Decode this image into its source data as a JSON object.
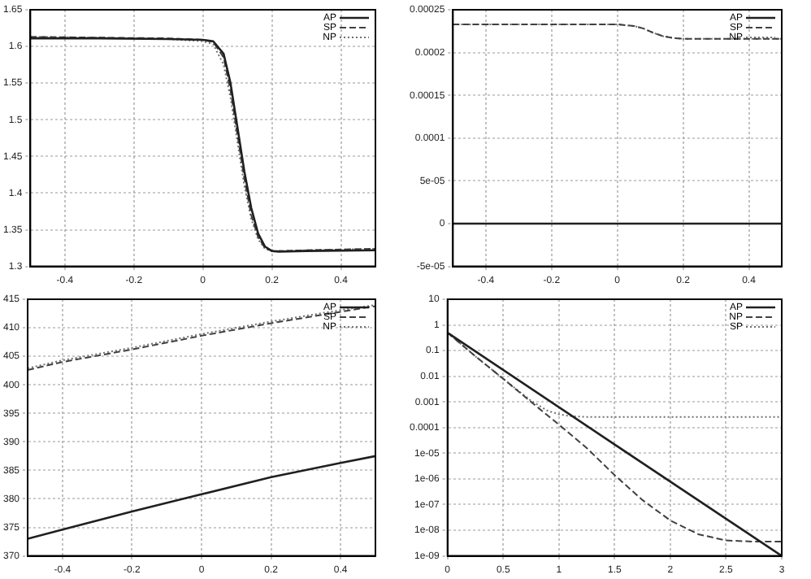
{
  "chart_data": [
    {
      "type": "line",
      "xlim": [
        -0.5,
        0.5
      ],
      "xticks": [
        -0.4,
        -0.2,
        0,
        0.2,
        0.4
      ],
      "ylim": [
        1.3,
        1.65
      ],
      "yticks": [
        1.3,
        1.35,
        1.4,
        1.45,
        1.5,
        1.55,
        1.6,
        1.65
      ],
      "grid": true,
      "legend": "top right",
      "marker": "none",
      "x": [
        -0.5,
        -0.3,
        -0.1,
        0,
        0.03,
        0.06,
        0.08,
        0.1,
        0.12,
        0.14,
        0.16,
        0.18,
        0.2,
        0.22,
        0.3,
        0.5
      ],
      "series": [
        {
          "name": "AP",
          "color": "#202020",
          "line_style": "solid",
          "values": [
            1.611,
            1.611,
            1.61,
            1.609,
            1.607,
            1.59,
            1.55,
            1.49,
            1.43,
            1.38,
            1.345,
            1.327,
            1.321,
            1.32,
            1.321,
            1.322
          ]
        },
        {
          "name": "SP",
          "color": "#404040",
          "line_style": "dashed",
          "values": [
            1.613,
            1.612,
            1.611,
            1.609,
            1.606,
            1.585,
            1.54,
            1.48,
            1.42,
            1.37,
            1.34,
            1.325,
            1.321,
            1.321,
            1.322,
            1.324
          ]
        },
        {
          "name": "NP",
          "color": "#707070",
          "line_style": "dotted",
          "values": [
            1.613,
            1.612,
            1.61,
            1.607,
            1.603,
            1.575,
            1.53,
            1.47,
            1.41,
            1.365,
            1.337,
            1.324,
            1.321,
            1.321,
            1.322,
            1.324
          ]
        }
      ]
    },
    {
      "type": "line",
      "xlim": [
        -0.5,
        0.5
      ],
      "xticks": [
        -0.4,
        -0.2,
        0,
        0.2,
        0.4
      ],
      "ylim": [
        -5e-05,
        0.00025
      ],
      "yticks": [
        {
          "value": -5e-05,
          "label": "-5e-05"
        },
        0,
        {
          "value": 5e-05,
          "label": "5e-05"
        },
        0.0001,
        0.00015,
        0.0002,
        0.00025
      ],
      "grid": true,
      "legend": "top right",
      "marker": "none",
      "series": [
        {
          "name": "AP",
          "color": "#202020",
          "line_style": "solid",
          "x": [
            -0.5,
            0.5
          ],
          "values": [
            0,
            0
          ]
        },
        {
          "name": "SP",
          "color": "#404040",
          "line_style": "dashed",
          "x": [
            -0.5,
            0,
            0.05,
            0.08,
            0.11,
            0.14,
            0.17,
            0.2,
            0.5
          ],
          "values": [
            0.000233,
            0.000233,
            0.000231,
            0.000228,
            0.000223,
            0.000219,
            0.000217,
            0.000216,
            0.000216
          ]
        },
        {
          "name": "NP",
          "color": "#707070",
          "line_style": "dotted",
          "x": [
            -0.5,
            0,
            0.05,
            0.08,
            0.11,
            0.14,
            0.17,
            0.2,
            0.5
          ],
          "values": [
            0.000233,
            0.000233,
            0.000231,
            0.000228,
            0.000223,
            0.000219,
            0.000217,
            0.000216,
            0.000216
          ]
        }
      ]
    },
    {
      "type": "line",
      "xlim": [
        -0.5,
        0.5
      ],
      "xticks": [
        -0.4,
        -0.2,
        0,
        0.2,
        0.4
      ],
      "ylim": [
        370,
        415
      ],
      "yticks": [
        370,
        375,
        380,
        385,
        390,
        395,
        400,
        405,
        410,
        415
      ],
      "grid": true,
      "legend": "top right",
      "marker": "none",
      "x": [
        -0.5,
        -0.4,
        -0.2,
        0,
        0.2,
        0.4,
        0.5
      ],
      "series": [
        {
          "name": "AP",
          "color": "#202020",
          "line_style": "solid",
          "values": [
            373,
            374.6,
            377.8,
            380.8,
            383.8,
            386.3,
            387.5
          ]
        },
        {
          "name": "SP",
          "color": "#404040",
          "line_style": "dashed",
          "values": [
            402.6,
            404,
            406.2,
            408.6,
            410.8,
            412.8,
            413.8
          ]
        },
        {
          "name": "NP",
          "color": "#707070",
          "line_style": "dotted",
          "values": [
            402.9,
            404.3,
            406.5,
            408.9,
            411.1,
            413.1,
            414
          ]
        }
      ]
    },
    {
      "type": "line",
      "log": "y",
      "xlim": [
        0,
        3
      ],
      "xticks": [
        0,
        0.5,
        1,
        1.5,
        2,
        2.5,
        3
      ],
      "ylim": [
        1e-09,
        10
      ],
      "yticks": [
        {
          "value": 1e-09,
          "label": "1e-09"
        },
        {
          "value": 1e-08,
          "label": "1e-08"
        },
        {
          "value": 1e-07,
          "label": "1e-07"
        },
        {
          "value": 1e-06,
          "label": "1e-06"
        },
        {
          "value": 1e-05,
          "label": "1e-05"
        },
        0.0001,
        0.001,
        0.01,
        0.1,
        1,
        10
      ],
      "grid": true,
      "legend": "top right",
      "marker": "none",
      "series": [
        {
          "name": "AP",
          "color": "#202020",
          "line_style": "solid",
          "x": [
            0,
            1.5,
            3
          ],
          "values": [
            0.5,
            2.2e-05,
            1e-09
          ]
        },
        {
          "name": "NP",
          "color": "#404040",
          "line_style": "dashed",
          "x": [
            0,
            0.25,
            0.5,
            0.75,
            1,
            1.25,
            1.5,
            1.75,
            2,
            2.25,
            2.5,
            2.75,
            3
          ],
          "values": [
            0.5,
            0.06,
            0.008,
            0.001,
            0.00013,
            1.6e-05,
            1.4e-06,
            1.5e-07,
            2.4e-08,
            7e-09,
            4e-09,
            3.6e-09,
            3.6e-09
          ]
        },
        {
          "name": "SP",
          "color": "#707070",
          "line_style": "dotted",
          "x": [
            0,
            0.25,
            0.5,
            0.75,
            0.9,
            1,
            1.1,
            1.25,
            3
          ],
          "values": [
            0.5,
            0.06,
            0.008,
            0.0011,
            0.00045,
            0.00033,
            0.00028,
            0.00026,
            0.00026
          ]
        }
      ]
    }
  ]
}
